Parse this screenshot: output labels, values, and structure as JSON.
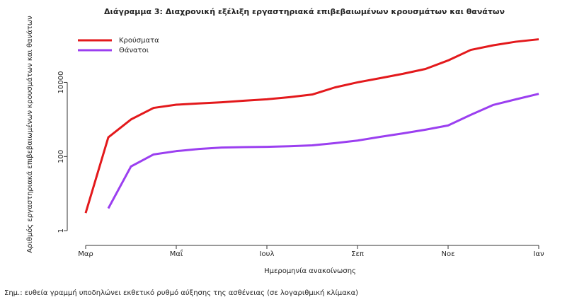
{
  "chart_data": {
    "type": "line",
    "title": "Διάγραμμα 3: Διαχρονική εξέλιξη εργαστηριακά επιβεβαιωμένων κρουσμάτων και θανάτων",
    "x_label": "Ημερομηνία ανακοίνωσης",
    "y_label": "Αριθμός εργαστηριακά επιβεβαιωμένων κρουσμάτων και θανάτων",
    "note": "Σημ.: ευθεία γραμμή υποδηλώνει εκθετικό ρυθμό αύξησης της ασθένειας (σε λογαριθμική κλίμακα)",
    "categories": [
      "Μαρ",
      null,
      null,
      null,
      "Μαΐ",
      null,
      null,
      null,
      "Ιουλ",
      null,
      null,
      null,
      "Σεπ",
      null,
      null,
      null,
      "Νοε",
      null,
      null,
      null,
      "Ιαν"
    ],
    "series": [
      {
        "name": "Κρούσματα",
        "color": "#e3191c",
        "values": [
          3,
          330,
          1000,
          2050,
          2500,
          2700,
          2900,
          3200,
          3500,
          4000,
          4700,
          7300,
          10000,
          13000,
          17000,
          23000,
          39000,
          75000,
          100000,
          125000,
          145000
        ]
      },
      {
        "name": "Θάνατοι",
        "color": "#9b3ff0",
        "values": [
          null,
          4,
          54,
          114,
          140,
          160,
          175,
          180,
          183,
          190,
          200,
          230,
          270,
          340,
          420,
          530,
          690,
          1330,
          2470,
          3500,
          4900
        ]
      }
    ],
    "log_y": true,
    "ylim": [
      0.5,
      300000
    ],
    "yticks": [
      1,
      100,
      10000
    ],
    "legend": "top-left"
  }
}
